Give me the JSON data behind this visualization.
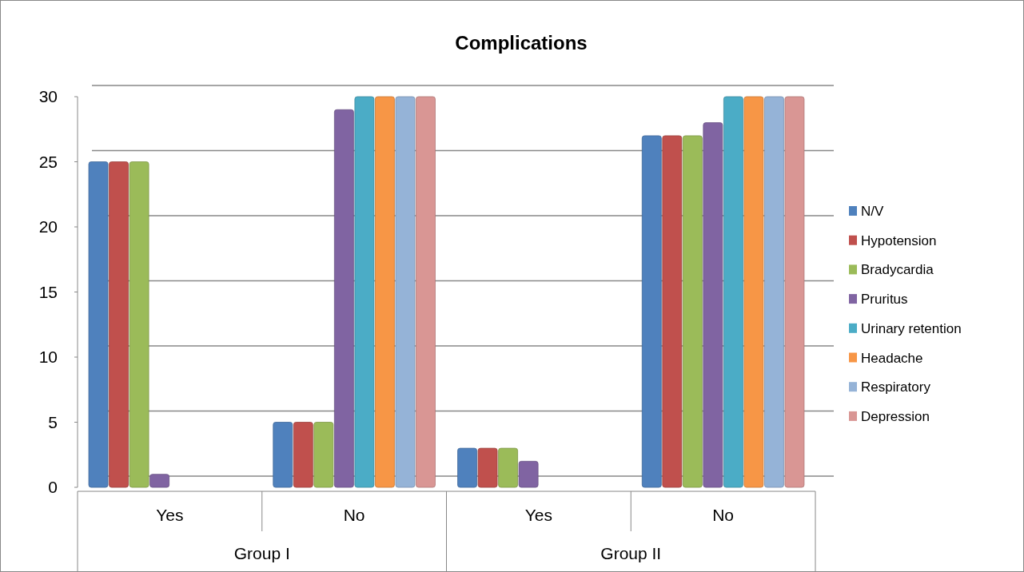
{
  "chart_data": {
    "type": "bar",
    "title": "Complications",
    "categories": [
      "Yes",
      "No",
      "Yes",
      "No"
    ],
    "annotations": [
      "Group I",
      "Group II"
    ],
    "series": [
      {
        "name": "N/V",
        "color": "#4f81bd",
        "values": [
          25,
          5,
          3,
          27
        ]
      },
      {
        "name": "Hypotension",
        "color": "#c0504d",
        "values": [
          25,
          5,
          3,
          27
        ]
      },
      {
        "name": "Bradycardia",
        "color": "#9bbb59",
        "values": [
          25,
          5,
          3,
          27
        ]
      },
      {
        "name": "Pruritus",
        "color": "#8064a2",
        "values": [
          1,
          29,
          2,
          28
        ]
      },
      {
        "name": "Urinary retention",
        "color": "#4bacc6",
        "values": [
          0,
          30,
          0,
          30
        ]
      },
      {
        "name": "Headache",
        "color": "#f79646",
        "values": [
          0,
          30,
          0,
          30
        ]
      },
      {
        "name": "Respiratory",
        "color": "#95b3d7",
        "values": [
          0,
          30,
          0,
          30
        ]
      },
      {
        "name": "Depression",
        "color": "#d99694",
        "values": [
          0,
          30,
          0,
          30
        ]
      }
    ],
    "ylim": [
      0,
      30
    ],
    "yticks": [
      0,
      5,
      10,
      15,
      20,
      25,
      30
    ],
    "grid": "y",
    "legend": "right"
  }
}
